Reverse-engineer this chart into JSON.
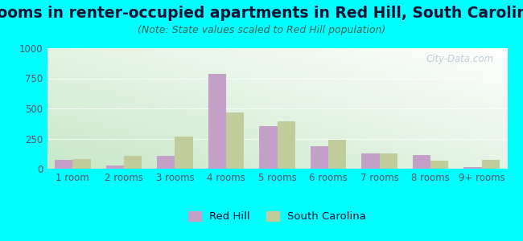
{
  "title": "Rooms in renter-occupied apartments in Red Hill, South Carolina",
  "subtitle": "(Note: State values scaled to Red Hill population)",
  "categories": [
    "1 room",
    "2 rooms",
    "3 rooms",
    "4 rooms",
    "5 rooms",
    "6 rooms",
    "7 rooms",
    "8 rooms",
    "9+ rooms"
  ],
  "red_hill": [
    75,
    30,
    110,
    790,
    355,
    185,
    130,
    115,
    15
  ],
  "south_carolina": [
    80,
    110,
    265,
    465,
    395,
    240,
    125,
    65,
    75
  ],
  "bar_color_redhill": "#c4a0c8",
  "bar_color_sc": "#c0cc99",
  "background_outer": "#00ffff",
  "ylim": [
    0,
    1000
  ],
  "yticks": [
    0,
    250,
    500,
    750,
    1000
  ],
  "legend_redhill": "Red Hill",
  "legend_sc": "South Carolina",
  "title_fontsize": 13.5,
  "subtitle_fontsize": 9,
  "axis_label_fontsize": 8.5,
  "watermark": "City-Data.com",
  "title_color": "#111133",
  "subtitle_color": "#336655",
  "tick_color": "#555566"
}
